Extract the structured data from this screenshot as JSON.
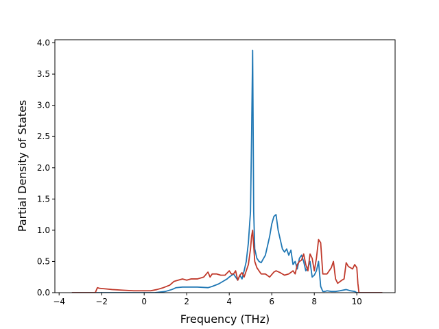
{
  "chart_data": {
    "type": "line",
    "title": "",
    "xlabel": "Frequency (THz)",
    "ylabel": "Partial Density of States",
    "xlim": [
      -4.2,
      11.8
    ],
    "ylim": [
      0.0,
      4.05
    ],
    "xticks": [
      -4,
      -2,
      0,
      2,
      4,
      6,
      8,
      10
    ],
    "yticks": [
      0.0,
      0.5,
      1.0,
      1.5,
      2.0,
      2.5,
      3.0,
      3.5,
      4.0
    ],
    "xtick_labels": [
      "−4",
      "−2",
      "0",
      "2",
      "4",
      "6",
      "8",
      "10"
    ],
    "ytick_labels": [
      "0.0",
      "0.5",
      "1.0",
      "1.5",
      "2.0",
      "2.5",
      "3.0",
      "3.5",
      "4.0"
    ],
    "grid": false,
    "legend": "none",
    "series": [
      {
        "color": "#1f77b4",
        "x": [
          -3.4,
          -2.2,
          -1.0,
          0.0,
          0.5,
          1.0,
          1.3,
          1.5,
          1.8,
          2.0,
          2.5,
          3.0,
          3.2,
          3.5,
          3.7,
          3.9,
          4.0,
          4.2,
          4.4,
          4.5,
          4.6,
          4.7,
          4.8,
          4.9,
          5.0,
          5.05,
          5.1,
          5.15,
          5.2,
          5.3,
          5.4,
          5.5,
          5.7,
          5.9,
          6.0,
          6.1,
          6.2,
          6.3,
          6.4,
          6.5,
          6.6,
          6.7,
          6.8,
          6.9,
          7.0,
          7.1,
          7.2,
          7.3,
          7.4,
          7.5,
          7.6,
          7.7,
          7.8,
          7.9,
          8.0,
          8.1,
          8.2,
          8.3,
          8.4,
          8.5,
          8.6,
          8.8,
          9.0,
          9.2,
          9.5,
          9.7,
          9.9,
          10.0,
          10.1,
          11.2
        ],
        "y": [
          0.0,
          0.0,
          0.0,
          0.0,
          0.0,
          0.02,
          0.05,
          0.08,
          0.09,
          0.09,
          0.09,
          0.08,
          0.1,
          0.14,
          0.18,
          0.22,
          0.25,
          0.3,
          0.2,
          0.28,
          0.22,
          0.35,
          0.5,
          0.8,
          1.3,
          2.5,
          3.88,
          1.3,
          0.7,
          0.55,
          0.5,
          0.48,
          0.6,
          0.9,
          1.1,
          1.22,
          1.25,
          1.0,
          0.85,
          0.7,
          0.65,
          0.7,
          0.6,
          0.68,
          0.45,
          0.5,
          0.38,
          0.55,
          0.6,
          0.5,
          0.35,
          0.4,
          0.5,
          0.25,
          0.28,
          0.35,
          0.5,
          0.1,
          0.02,
          0.02,
          0.03,
          0.02,
          0.02,
          0.03,
          0.05,
          0.03,
          0.02,
          0.0,
          0.0,
          0.0
        ]
      },
      {
        "color": "#c0392b",
        "x": [
          -3.4,
          -2.3,
          -2.2,
          -2.1,
          -1.8,
          -1.5,
          -1.0,
          -0.5,
          0.0,
          0.3,
          0.6,
          0.9,
          1.2,
          1.4,
          1.6,
          1.8,
          2.0,
          2.2,
          2.5,
          2.8,
          3.0,
          3.1,
          3.2,
          3.4,
          3.6,
          3.8,
          4.0,
          4.1,
          4.2,
          4.3,
          4.4,
          4.5,
          4.6,
          4.7,
          4.8,
          4.9,
          5.0,
          5.05,
          5.1,
          5.2,
          5.3,
          5.4,
          5.5,
          5.7,
          5.9,
          6.1,
          6.2,
          6.4,
          6.6,
          6.8,
          7.0,
          7.1,
          7.2,
          7.3,
          7.4,
          7.5,
          7.6,
          7.7,
          7.8,
          7.9,
          8.0,
          8.1,
          8.2,
          8.3,
          8.4,
          8.6,
          8.8,
          8.9,
          9.0,
          9.1,
          9.3,
          9.4,
          9.5,
          9.6,
          9.8,
          9.9,
          10.0,
          10.05,
          10.1,
          11.2
        ],
        "y": [
          0.0,
          0.0,
          0.08,
          0.07,
          0.06,
          0.05,
          0.04,
          0.03,
          0.03,
          0.03,
          0.05,
          0.08,
          0.12,
          0.18,
          0.2,
          0.22,
          0.2,
          0.22,
          0.22,
          0.25,
          0.33,
          0.25,
          0.3,
          0.3,
          0.28,
          0.28,
          0.35,
          0.3,
          0.3,
          0.35,
          0.2,
          0.28,
          0.32,
          0.25,
          0.35,
          0.45,
          0.7,
          0.9,
          1.0,
          0.5,
          0.4,
          0.35,
          0.3,
          0.3,
          0.25,
          0.33,
          0.35,
          0.32,
          0.28,
          0.3,
          0.35,
          0.3,
          0.45,
          0.5,
          0.52,
          0.62,
          0.45,
          0.35,
          0.62,
          0.55,
          0.35,
          0.55,
          0.85,
          0.8,
          0.3,
          0.3,
          0.4,
          0.5,
          0.22,
          0.15,
          0.2,
          0.22,
          0.48,
          0.42,
          0.38,
          0.45,
          0.4,
          0.15,
          0.0,
          0.0
        ]
      }
    ]
  }
}
